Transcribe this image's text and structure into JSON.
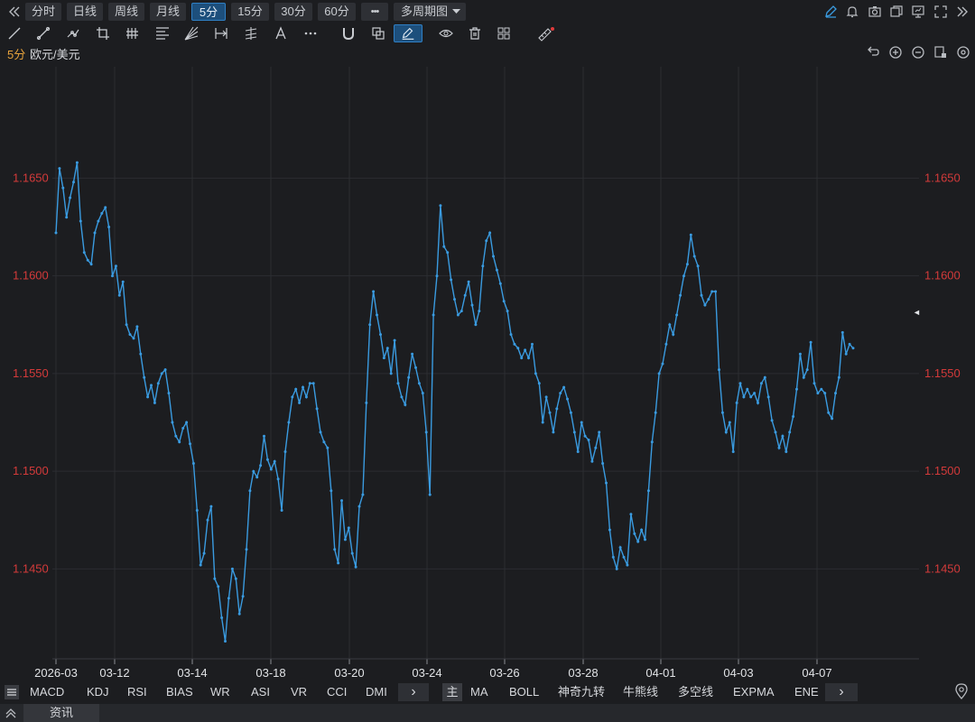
{
  "period_bar": {
    "collapse_icon": "double-chevron-left-icon",
    "periods": [
      "分时",
      "日线",
      "周线",
      "月线",
      "5分",
      "15分",
      "30分",
      "60分"
    ],
    "active_period": "5分",
    "more_label": "•••",
    "multi_period_label": "多周期图",
    "right_icons": [
      "pencil-icon",
      "bell-icon",
      "camera-icon",
      "copy-icon",
      "monitor-icon",
      "fullscreen-icon",
      "double-chevron-right-icon"
    ]
  },
  "draw_tools": [
    "line-icon",
    "ray-icon",
    "path-icon",
    "crop-icon",
    "parallel-lines-icon",
    "fib-icon",
    "fan-icon",
    "range-icon",
    "pitchfork-icon",
    "text-icon",
    "more-dots-icon",
    "magnet-icon",
    "layers-icon",
    "pen-icon",
    "eye-icon",
    "trash-icon",
    "grid-icon",
    "ruler-icon"
  ],
  "symbol": {
    "period": "5分",
    "name": "欧元/美元"
  },
  "chart_tools": [
    "undo-icon",
    "zoom-in-icon",
    "zoom-out-icon",
    "compare-icon",
    "settings-icon"
  ],
  "chart_data": {
    "type": "line",
    "y_ticks": [
      "1.1650",
      "1.1600",
      "1.1550",
      "1.1500",
      "1.1450"
    ],
    "ylim": [
      1.1404,
      1.1707
    ],
    "x_ticks": [
      "2026-03",
      "03-12",
      "03-14",
      "03-18",
      "03-20",
      "03-24",
      "03-26",
      "03-28",
      "04-01",
      "04-03",
      "04-07"
    ],
    "grid": true,
    "color": "#3a9be0",
    "last_marker": "◄",
    "series": [
      {
        "values": [
          1.1622,
          1.1655,
          1.1645,
          1.163,
          1.164,
          1.1648,
          1.1658,
          1.1628,
          1.1612,
          1.1608,
          1.1606,
          1.1622,
          1.1628,
          1.1632,
          1.1635,
          1.1625,
          1.16,
          1.1605,
          1.159,
          1.1597,
          1.1575,
          1.157,
          1.1568,
          1.1574,
          1.156,
          1.1548,
          1.1538,
          1.1544,
          1.1535,
          1.1545,
          1.155,
          1.1552,
          1.154,
          1.1525,
          1.1518,
          1.1515,
          1.1522,
          1.1525,
          1.1514,
          1.1504,
          1.148,
          1.1452,
          1.1458,
          1.1475,
          1.1482,
          1.1445,
          1.1441,
          1.1425,
          1.1413,
          1.1435,
          1.145,
          1.1445,
          1.1427,
          1.1436,
          1.146,
          1.149,
          1.15,
          1.1497,
          1.1503,
          1.1518,
          1.1506,
          1.1501,
          1.1505,
          1.1496,
          1.148,
          1.151,
          1.1525,
          1.1538,
          1.1542,
          1.1535,
          1.1543,
          1.1538,
          1.1545,
          1.1545,
          1.1532,
          1.152,
          1.1515,
          1.1512,
          1.149,
          1.146,
          1.1453,
          1.1485,
          1.1465,
          1.1471,
          1.1458,
          1.1451,
          1.1482,
          1.1488,
          1.1535,
          1.1575,
          1.1592,
          1.158,
          1.157,
          1.1558,
          1.1563,
          1.155,
          1.1567,
          1.1545,
          1.1538,
          1.1534,
          1.1548,
          1.156,
          1.1553,
          1.1545,
          1.154,
          1.152,
          1.1488,
          1.158,
          1.16,
          1.1636,
          1.1615,
          1.1612,
          1.1598,
          1.1588,
          1.158,
          1.1582,
          1.159,
          1.1597,
          1.1585,
          1.1575,
          1.1582,
          1.1605,
          1.1618,
          1.1622,
          1.161,
          1.1603,
          1.1596,
          1.1587,
          1.1582,
          1.157,
          1.1565,
          1.1563,
          1.1558,
          1.1562,
          1.1558,
          1.1565,
          1.155,
          1.1545,
          1.1525,
          1.1538,
          1.153,
          1.152,
          1.1532,
          1.154,
          1.1543,
          1.1537,
          1.153,
          1.152,
          1.151,
          1.1525,
          1.1518,
          1.1516,
          1.1505,
          1.1512,
          1.152,
          1.1504,
          1.1494,
          1.147,
          1.1456,
          1.145,
          1.1461,
          1.1456,
          1.1452,
          1.1478,
          1.1468,
          1.1464,
          1.147,
          1.1465,
          1.149,
          1.1515,
          1.153,
          1.155,
          1.1555,
          1.1565,
          1.1575,
          1.157,
          1.158,
          1.159,
          1.16,
          1.1606,
          1.1621,
          1.161,
          1.1605,
          1.159,
          1.1585,
          1.1588,
          1.1592,
          1.1592,
          1.1552,
          1.153,
          1.152,
          1.1525,
          1.151,
          1.1535,
          1.1545,
          1.1538,
          1.1542,
          1.1538,
          1.154,
          1.1535,
          1.1545,
          1.1548,
          1.1538,
          1.1526,
          1.152,
          1.1512,
          1.1518,
          1.151,
          1.152,
          1.1528,
          1.1542,
          1.156,
          1.1548,
          1.1552,
          1.1566,
          1.1545,
          1.154,
          1.1542,
          1.154,
          1.153,
          1.1527,
          1.154,
          1.1548,
          1.1571,
          1.156,
          1.1565,
          1.1563
        ]
      }
    ]
  },
  "indicator_tabs": {
    "collapse_icon": "collapse-icon",
    "sub_tabs": [
      "MACD",
      "KDJ",
      "RSI",
      "BIAS",
      "WR",
      "ASI",
      "VR",
      "CCI",
      "DMI"
    ],
    "next_label": "›",
    "main_label": "主",
    "main_tabs": [
      "MA",
      "BOLL",
      "神奇九转",
      "牛熊线",
      "多空线",
      "EXPMA",
      "ENE"
    ],
    "location_icon": "location-icon"
  },
  "info_bar": {
    "toggle_icon": "double-chevron-up-icon",
    "label": "资讯"
  }
}
